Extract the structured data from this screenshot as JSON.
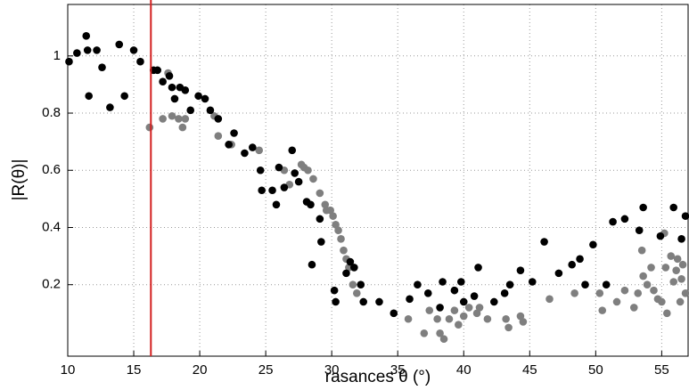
{
  "chart_data": {
    "type": "scatter",
    "xlabel": "rasances θ (°)",
    "ylabel": "|R(θ)|",
    "xlim": [
      10,
      57
    ],
    "ylim": [
      -0.05,
      1.18
    ],
    "xticks": [
      10,
      15,
      20,
      25,
      30,
      35,
      40,
      45,
      50,
      55
    ],
    "yticks": [
      0.2,
      0.4,
      0.6,
      0.8,
      1
    ],
    "grid": true,
    "reference_line": {
      "x": 16.3,
      "color": "#d42020"
    },
    "series": [
      {
        "color": "#7f7f7f",
        "x": [
          16.2,
          17.2,
          17.6,
          17.9,
          18.4,
          18.7,
          18.9,
          21.1,
          21.4,
          22.4,
          24.5,
          26.4,
          26.8,
          27.7,
          27.9,
          28.2,
          28.6,
          29.1,
          29.5,
          29.6,
          29.9,
          30.1,
          30.3,
          30.5,
          30.7,
          30.9,
          31.1,
          31.3,
          31.6,
          31.9,
          35.8,
          37.0,
          37.4,
          38.0,
          38.2,
          38.5,
          38.9,
          39.3,
          39.6,
          40.0,
          40.4,
          41.0,
          41.2,
          41.8,
          43.2,
          43.4,
          44.3,
          44.5,
          46.5,
          48.4,
          50.3,
          50.5,
          51.6,
          52.2,
          52.9,
          53.2,
          53.6,
          53.9,
          54.2,
          54.4,
          54.7,
          55.0,
          55.3,
          55.4,
          55.7,
          55.9,
          56.1,
          56.2,
          56.4,
          56.5,
          56.6,
          56.8,
          55.2,
          53.5
        ],
        "y": [
          0.75,
          0.78,
          0.94,
          0.79,
          0.78,
          0.75,
          0.78,
          0.79,
          0.72,
          0.69,
          0.67,
          0.6,
          0.55,
          0.62,
          0.61,
          0.6,
          0.57,
          0.52,
          0.48,
          0.46,
          0.46,
          0.44,
          0.41,
          0.39,
          0.36,
          0.32,
          0.29,
          0.26,
          0.2,
          0.17,
          0.08,
          0.03,
          0.11,
          0.08,
          0.03,
          0.01,
          0.08,
          0.11,
          0.06,
          0.09,
          0.12,
          0.1,
          0.12,
          0.08,
          0.08,
          0.05,
          0.09,
          0.07,
          0.15,
          0.17,
          0.17,
          0.11,
          0.14,
          0.18,
          0.12,
          0.17,
          0.23,
          0.2,
          0.26,
          0.18,
          0.15,
          0.14,
          0.26,
          0.1,
          0.3,
          0.21,
          0.25,
          0.29,
          0.14,
          0.22,
          0.27,
          0.17,
          0.38,
          0.32
        ]
      },
      {
        "color": "#000000",
        "x": [
          10.1,
          10.7,
          11.4,
          11.5,
          11.6,
          12.2,
          12.6,
          13.2,
          13.9,
          14.3,
          15.0,
          15.5,
          16.5,
          16.8,
          17.2,
          17.7,
          17.9,
          18.1,
          18.5,
          18.9,
          19.3,
          19.9,
          20.4,
          20.8,
          21.4,
          22.2,
          22.6,
          23.4,
          24.0,
          24.6,
          24.7,
          25.5,
          25.8,
          26.0,
          26.4,
          27.0,
          27.2,
          27.5,
          28.1,
          28.4,
          28.5,
          29.1,
          29.2,
          30.2,
          30.3,
          31.1,
          31.4,
          31.7,
          32.2,
          32.4,
          33.6,
          34.7,
          35.9,
          36.5,
          37.3,
          38.2,
          38.4,
          39.3,
          39.8,
          40.0,
          40.8,
          41.1,
          42.3,
          43.1,
          43.5,
          44.3,
          45.2,
          46.1,
          47.2,
          48.2,
          48.8,
          49.2,
          49.8,
          50.8,
          51.3,
          52.2,
          53.3,
          53.6,
          54.9,
          55.9,
          56.5,
          56.8
        ],
        "y": [
          0.98,
          1.01,
          1.07,
          1.02,
          0.86,
          1.02,
          0.96,
          0.82,
          1.04,
          0.86,
          1.02,
          0.98,
          0.95,
          0.95,
          0.91,
          0.93,
          0.89,
          0.85,
          0.89,
          0.88,
          0.81,
          0.86,
          0.85,
          0.81,
          0.78,
          0.69,
          0.73,
          0.66,
          0.68,
          0.6,
          0.53,
          0.53,
          0.48,
          0.61,
          0.54,
          0.67,
          0.59,
          0.56,
          0.49,
          0.48,
          0.27,
          0.43,
          0.35,
          0.18,
          0.14,
          0.24,
          0.28,
          0.26,
          0.2,
          0.14,
          0.14,
          0.1,
          0.15,
          0.2,
          0.17,
          0.12,
          0.21,
          0.18,
          0.21,
          0.14,
          0.16,
          0.26,
          0.14,
          0.17,
          0.2,
          0.25,
          0.21,
          0.35,
          0.24,
          0.27,
          0.29,
          0.2,
          0.34,
          0.2,
          0.42,
          0.43,
          0.39,
          0.47,
          0.37,
          0.47,
          0.36,
          0.44
        ]
      }
    ]
  }
}
